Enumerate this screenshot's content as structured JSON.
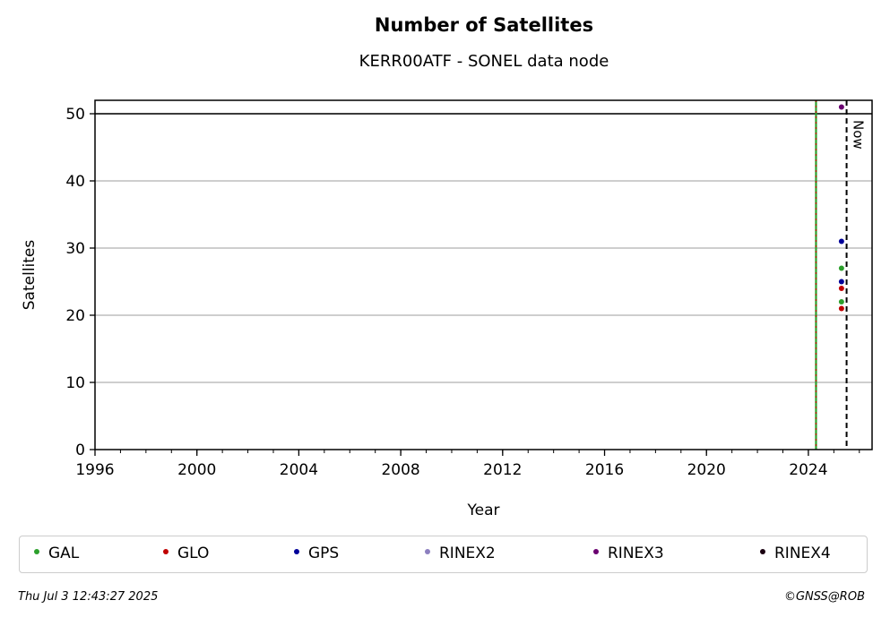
{
  "chart_data": {
    "type": "scatter",
    "title": "Number of Satellites",
    "subtitle": "KERR00ATF - SONEL data node",
    "xlabel": "Year",
    "ylabel": "Satellites",
    "xlim": [
      1996,
      2026.5
    ],
    "ylim": [
      0,
      52
    ],
    "xticks": [
      1996,
      2000,
      2004,
      2008,
      2012,
      2016,
      2020,
      2024
    ],
    "yticks": [
      0,
      10,
      20,
      30,
      40,
      50
    ],
    "grid": "y",
    "reference_line_y": 50,
    "start_line_x": 2024.3,
    "now_line": {
      "x": 2025.5,
      "label": "Now"
    },
    "legend_placement": "bottom",
    "series": [
      {
        "name": "GAL",
        "color": "#2ca02c",
        "points": [
          [
            2025.3,
            22
          ],
          [
            2025.3,
            27
          ]
        ]
      },
      {
        "name": "GLO",
        "color": "#c00000",
        "points": [
          [
            2025.3,
            21
          ],
          [
            2025.3,
            24
          ]
        ]
      },
      {
        "name": "GPS",
        "color": "#000099",
        "points": [
          [
            2025.3,
            25
          ],
          [
            2025.3,
            31
          ]
        ]
      },
      {
        "name": "RINEX2",
        "color": "#8c7fbf",
        "points": []
      },
      {
        "name": "RINEX3",
        "color": "#6a0070",
        "points": [
          [
            2025.3,
            51
          ]
        ]
      },
      {
        "name": "RINEX4",
        "color": "#1a0010",
        "points": []
      }
    ]
  },
  "footer": {
    "timestamp": "Thu Jul  3 12:43:27 2025",
    "credit": "©GNSS@ROB"
  }
}
